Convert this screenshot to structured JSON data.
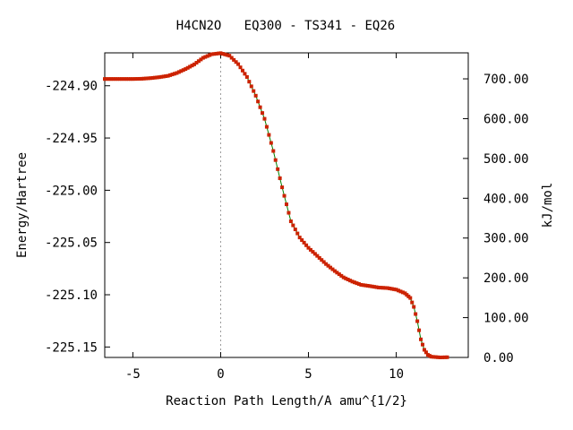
{
  "chart_data": {
    "type": "line",
    "title": "H4CN2O   EQ300 - TS341 - EQ26",
    "xlabel": "Reaction Path Length/A amu^{1/2}",
    "ylabel": "Energy/Hartree",
    "y2label": "kJ/mol",
    "xlim": [
      -6.6,
      14.1
    ],
    "ylim": [
      -225.16,
      -224.8685
    ],
    "x_ticks": [
      "-5",
      "0",
      "5",
      "10"
    ],
    "y_ticks": [
      "-224.90",
      "-224.95",
      "-225.00",
      "-225.05",
      "-225.10",
      "-225.15"
    ],
    "y2_ticks": [
      "0.00",
      "100.00",
      "200.00",
      "300.00",
      "400.00",
      "500.00",
      "600.00",
      "700.00"
    ],
    "y2_offset_hartree": -225.16,
    "hartree_to_kjmol": 2625.5,
    "ts_line_x": 0,
    "grid": false,
    "series": [
      {
        "color": "#cc2200",
        "line_color": "#008000",
        "x": [
          -6.6,
          -6.0,
          -5.0,
          -4.5,
          -4.0,
          -3.5,
          -3.0,
          -2.5,
          -2.0,
          -1.5,
          -1.0,
          -0.5,
          0.0,
          0.5,
          1.0,
          1.5,
          2.0,
          2.5,
          3.0,
          3.5,
          4.0,
          4.5,
          5.0,
          5.5,
          6.0,
          6.5,
          7.0,
          7.5,
          8.0,
          8.5,
          9.0,
          9.5,
          10.0,
          10.5,
          10.8,
          11.0,
          11.2,
          11.4,
          11.6,
          11.8,
          12.0,
          12.5,
          12.9
        ],
        "y": [
          -224.8935,
          -224.8935,
          -224.8935,
          -224.8933,
          -224.8927,
          -224.8918,
          -224.8905,
          -224.8878,
          -224.884,
          -224.8795,
          -224.8733,
          -224.8698,
          -224.8688,
          -224.8712,
          -224.8793,
          -224.8916,
          -224.9095,
          -224.9316,
          -224.9624,
          -224.9972,
          -225.0297,
          -225.0452,
          -225.0551,
          -225.0628,
          -225.0706,
          -225.0773,
          -225.0834,
          -225.0874,
          -225.0905,
          -225.0917,
          -225.0931,
          -225.0936,
          -225.0951,
          -225.0986,
          -225.1031,
          -225.1116,
          -225.1253,
          -225.1427,
          -225.1527,
          -225.1575,
          -225.1593,
          -225.16,
          -225.1598
        ]
      }
    ]
  }
}
